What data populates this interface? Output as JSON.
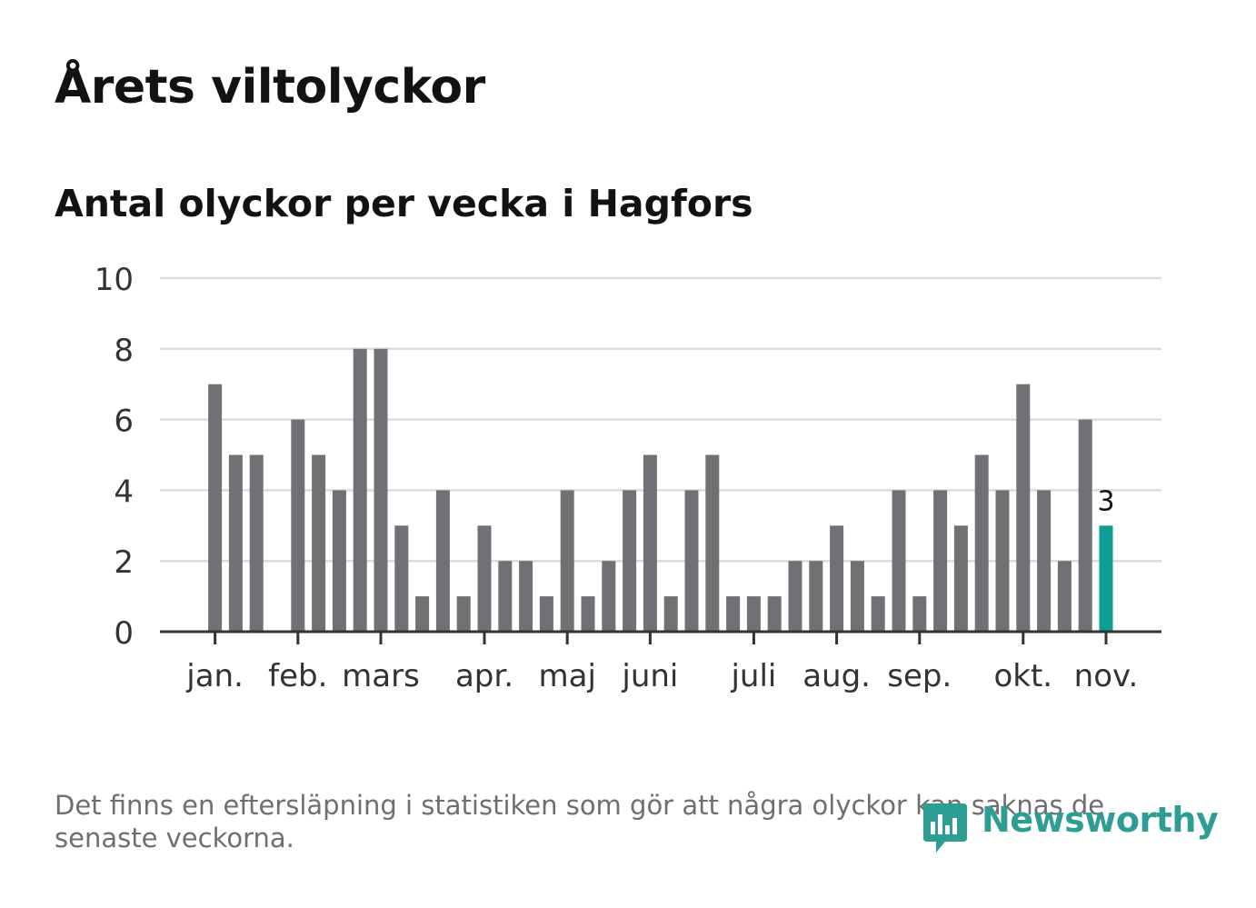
{
  "header": {
    "title": "Årets viltolyckor",
    "subtitle": "Antal olyckor per vecka i Hagfors"
  },
  "footer": {
    "note": "Det finns en eftersläpning i statistiken som gör att några olyckor kan saknas de senaste veckorna.",
    "brand": "Newsworthy"
  },
  "colors": {
    "bar": "#717075",
    "highlight": "#0d9e94",
    "grid": "#dcdcdc",
    "axis": "#333333",
    "text": "#121212",
    "muted": "#6f6e73"
  },
  "chart_data": {
    "type": "bar",
    "title": "Antal olyckor per vecka i Hagfors",
    "xlabel": "",
    "ylabel": "",
    "ylim": [
      0,
      10
    ],
    "yticks": [
      0,
      2,
      4,
      6,
      8,
      10
    ],
    "grid": true,
    "weeks": [
      1,
      2,
      3,
      4,
      5,
      6,
      7,
      8,
      9,
      10,
      11,
      12,
      13,
      14,
      15,
      16,
      17,
      18,
      19,
      20,
      21,
      22,
      23,
      24,
      25,
      26,
      27,
      28,
      29,
      30,
      31,
      32,
      33,
      34,
      35,
      36,
      37,
      38,
      39,
      40,
      41,
      42,
      43,
      44,
      45,
      46,
      47,
      48,
      49,
      50,
      51,
      52,
      53
    ],
    "values": [
      0,
      0,
      7,
      5,
      5,
      0,
      6,
      5,
      4,
      8,
      8,
      3,
      1,
      4,
      1,
      3,
      2,
      2,
      1,
      4,
      1,
      2,
      4,
      5,
      1,
      4,
      5,
      1,
      1,
      1,
      2,
      2,
      3,
      2,
      1,
      4,
      1,
      4,
      3,
      5,
      4,
      7,
      4,
      2,
      6,
      3,
      null,
      null,
      null,
      null,
      null,
      null,
      null
    ],
    "highlight_index": 45,
    "highlight_label": "3",
    "month_ticks": [
      {
        "label": "jan.",
        "week": 3
      },
      {
        "label": "feb.",
        "week": 7
      },
      {
        "label": "mars",
        "week": 11
      },
      {
        "label": "apr.",
        "week": 16
      },
      {
        "label": "maj",
        "week": 20
      },
      {
        "label": "juni",
        "week": 24
      },
      {
        "label": "juli",
        "week": 29
      },
      {
        "label": "aug.",
        "week": 33
      },
      {
        "label": "sep.",
        "week": 37
      },
      {
        "label": "okt.",
        "week": 42
      },
      {
        "label": "nov.",
        "week": 46
      }
    ]
  }
}
